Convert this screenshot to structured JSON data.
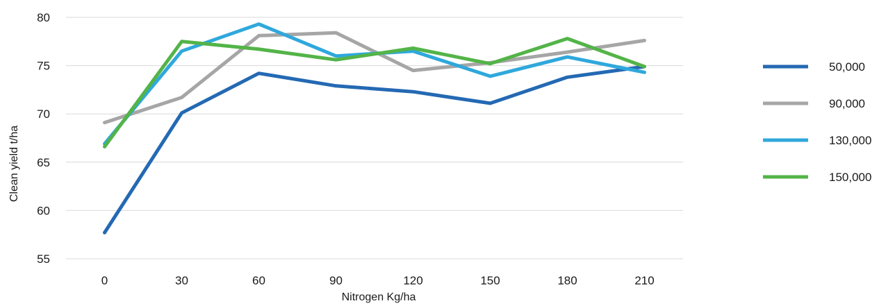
{
  "chart_data": {
    "type": "line",
    "title": "",
    "xlabel": "Nitrogen Kg/ha",
    "ylabel": "Clean yield t/ha",
    "categories": [
      "0",
      "30",
      "60",
      "90",
      "120",
      "150",
      "180",
      "210"
    ],
    "ylim": [
      55,
      80
    ],
    "yticks": [
      55,
      60,
      65,
      70,
      75,
      80
    ],
    "grid": true,
    "legend_position": "right",
    "series": [
      {
        "name": "50,000",
        "color": "#2469b3",
        "values": [
          57.7,
          70.1,
          74.2,
          72.9,
          72.3,
          71.1,
          73.8,
          74.9
        ]
      },
      {
        "name": "90,000",
        "color": "#a6a6a6",
        "values": [
          69.1,
          71.7,
          78.1,
          78.4,
          74.5,
          75.3,
          76.4,
          77.6
        ]
      },
      {
        "name": "130,000",
        "color": "#2fa8dc",
        "values": [
          66.9,
          76.5,
          79.3,
          76.0,
          76.5,
          73.9,
          75.9,
          74.3
        ]
      },
      {
        "name": "150,000",
        "color": "#53b448",
        "values": [
          66.6,
          77.5,
          76.7,
          75.6,
          76.8,
          75.2,
          77.8,
          74.9
        ]
      }
    ]
  }
}
